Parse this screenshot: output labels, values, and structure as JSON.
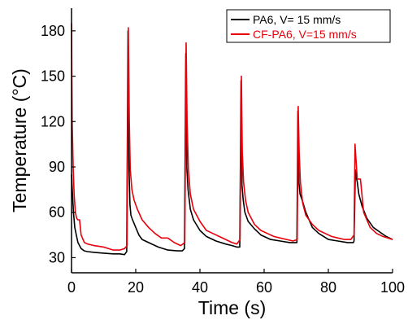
{
  "chart_data": {
    "type": "line",
    "title": "",
    "xlabel": "Time (s)",
    "ylabel": "Temperature (°C)",
    "xlim": [
      0,
      100
    ],
    "ylim": [
      20,
      195
    ],
    "xticks": [
      0,
      20,
      40,
      60,
      80,
      100
    ],
    "yticks": [
      30,
      60,
      90,
      120,
      150,
      180
    ],
    "grid": false,
    "legend_position": "top-right",
    "series": [
      {
        "name": "PA6, V= 15 mm/s",
        "color": "#000000",
        "x": [
          0,
          0.3,
          0.6,
          1,
          1.5,
          2,
          3,
          4,
          5,
          7,
          10,
          13,
          15,
          16.5,
          17.2,
          17.6,
          17.9,
          18.2,
          18.5,
          19,
          20,
          21,
          22,
          24,
          27,
          30,
          33,
          34.5,
          35.2,
          35.6,
          35.9,
          36.3,
          37,
          38,
          40,
          42,
          45,
          48,
          50,
          51.5,
          52.4,
          52.8,
          53.1,
          53.5,
          54,
          55,
          57,
          59,
          62,
          65,
          68,
          69.8,
          70.2,
          70.5,
          70.8,
          71.2,
          72,
          73,
          75,
          77,
          80,
          83,
          86,
          87.8,
          88,
          88.4,
          88.7,
          89,
          89.5,
          90.5,
          92,
          94,
          96,
          98,
          100
        ],
        "y": [
          85,
          72,
          60,
          50,
          45,
          40,
          36,
          34.5,
          34,
          33.5,
          33,
          32.5,
          32.5,
          32,
          34,
          180,
          90,
          65,
          58,
          55,
          50,
          45,
          42,
          40,
          37,
          35,
          34.5,
          34.5,
          36,
          165,
          90,
          75,
          62,
          55,
          48,
          44,
          41,
          39,
          38,
          37,
          37,
          147,
          78,
          68,
          60,
          54,
          49,
          45,
          42,
          41,
          40,
          40,
          40,
          127,
          80,
          72,
          67,
          60,
          50,
          46,
          42,
          41,
          40,
          40,
          41,
          88,
          83,
          80,
          72,
          64,
          56,
          50,
          47,
          44,
          42
        ]
      },
      {
        "name": "CF-PA6, V=15 mm/s",
        "color": "#e8000b",
        "x": [
          0,
          0.2,
          0.5,
          0.8,
          1.2,
          1.6,
          2,
          2.5,
          3,
          4,
          5,
          7,
          10,
          13,
          15,
          16.5,
          17.3,
          17.7,
          18,
          18.3,
          18.8,
          19.5,
          20.5,
          22,
          24,
          26,
          28,
          30,
          32,
          34,
          35.3,
          35.7,
          36,
          36.4,
          37,
          38,
          40,
          42,
          44,
          46,
          48,
          50,
          51.5,
          52.5,
          52.9,
          53.2,
          53.6,
          54.2,
          55,
          57,
          59,
          61,
          63,
          65,
          67,
          69,
          70.3,
          70.6,
          70.9,
          71.3,
          72,
          73,
          75,
          77,
          79,
          81,
          83,
          85,
          87,
          88,
          88.3,
          88.6,
          89,
          90,
          91,
          93,
          95,
          97,
          100
        ],
        "y": [
          185,
          120,
          90,
          72,
          60,
          56,
          55,
          55,
          45,
          40,
          39,
          38,
          37,
          35,
          35,
          36,
          38,
          182,
          120,
          88,
          75,
          68,
          62,
          55,
          50,
          46,
          43,
          43,
          40,
          38,
          40,
          172,
          120,
          88,
          72,
          62,
          54,
          48,
          46,
          44,
          42,
          40,
          39,
          42,
          150,
          100,
          80,
          68,
          60,
          52,
          48,
          46,
          44,
          43,
          42,
          41,
          42,
          130,
          100,
          80,
          66,
          58,
          52,
          48,
          46,
          44,
          43,
          42,
          42,
          45,
          105,
          95,
          82,
          82,
          60,
          50,
          46,
          44,
          42
        ]
      }
    ]
  }
}
